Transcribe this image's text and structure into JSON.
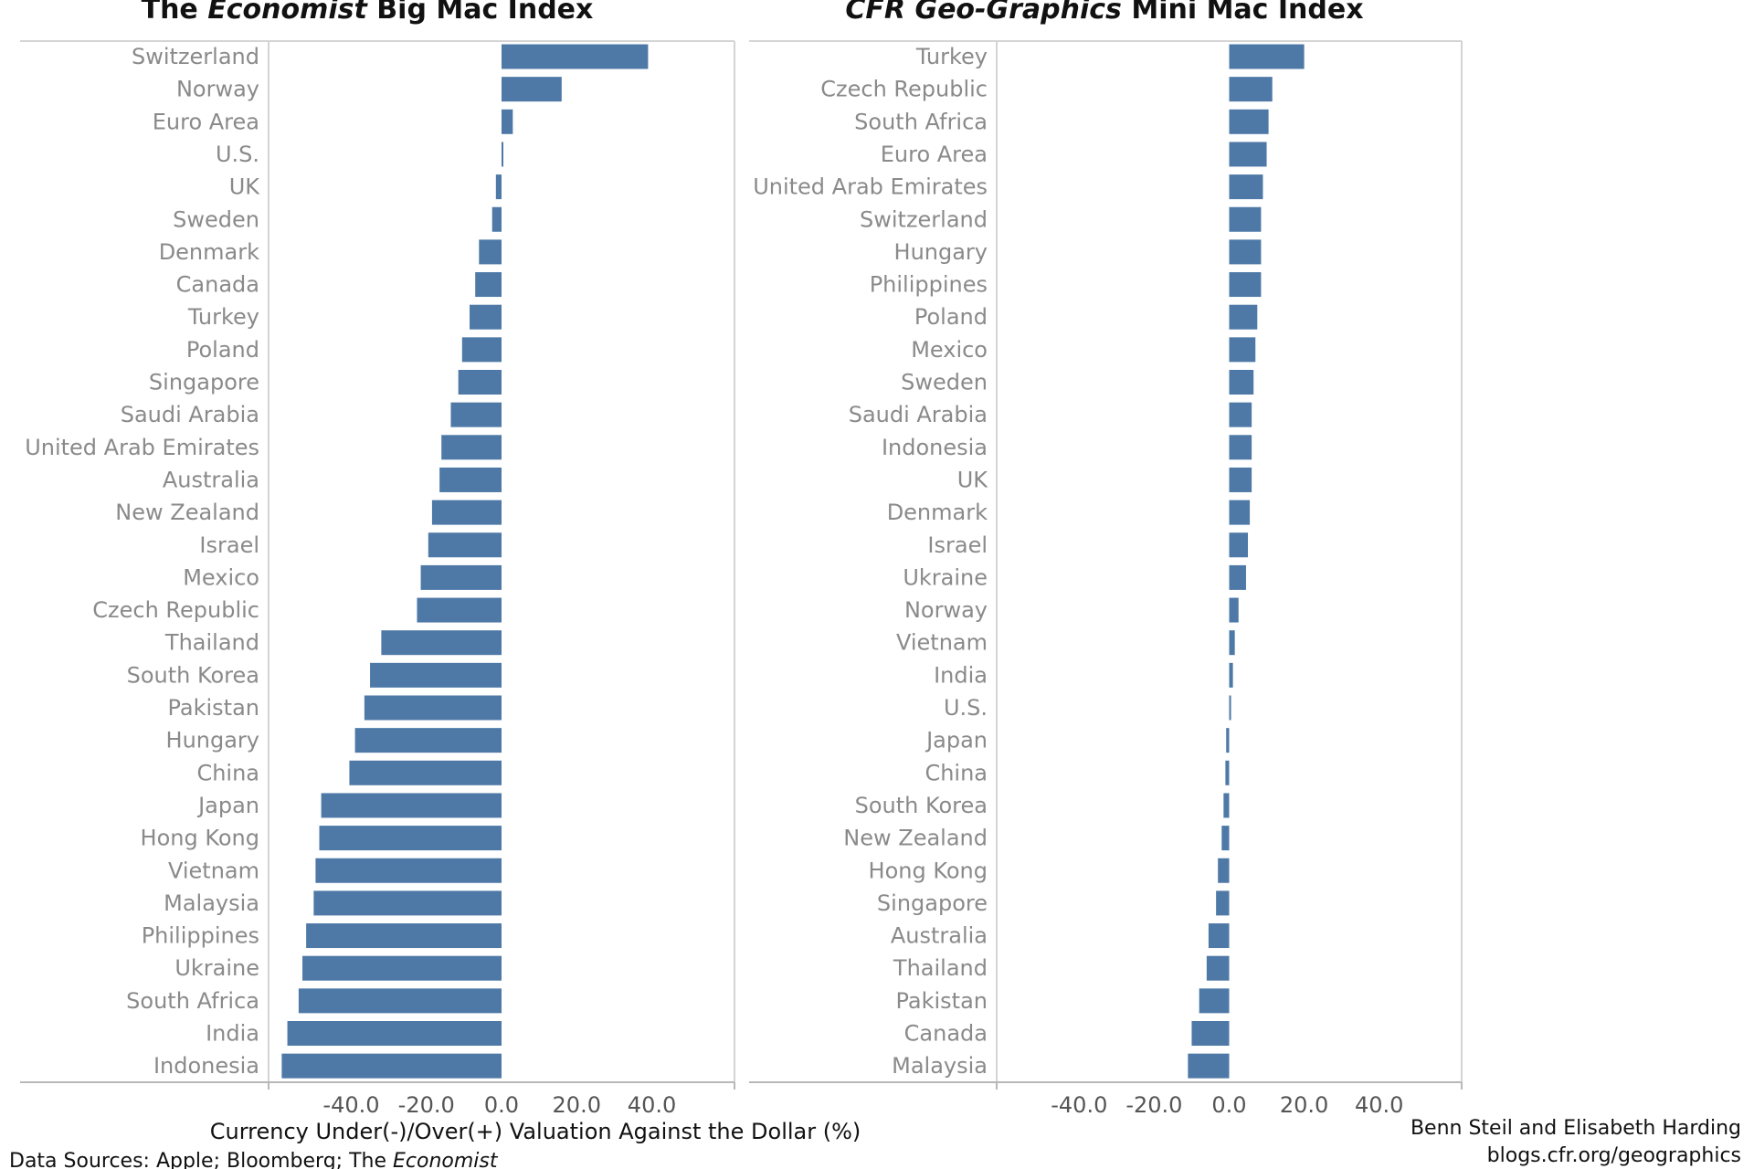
{
  "chart_data": [
    {
      "type": "bar",
      "orientation": "horizontal",
      "title": {
        "prefix": "The ",
        "italic": "Economist",
        "suffix": " Big Mac Index"
      },
      "categories": [
        "Switzerland",
        "Norway",
        "Euro Area",
        "U.S.",
        "UK",
        "Sweden",
        "Denmark",
        "Canada",
        "Turkey",
        "Poland",
        "Singapore",
        "Saudi Arabia",
        "United Arab Emirates",
        "Australia",
        "New Zealand",
        "Israel",
        "Mexico",
        "Czech Republic",
        "Thailand",
        "South Korea",
        "Pakistan",
        "Hungary",
        "China",
        "Japan",
        "Hong Kong",
        "Vietnam",
        "Malaysia",
        "Philippines",
        "Ukraine",
        "South Africa",
        "India",
        "Indonesia"
      ],
      "values": [
        39.0,
        16.0,
        3.0,
        0.0,
        -1.5,
        -2.5,
        -6.0,
        -7.0,
        -8.5,
        -10.5,
        -11.5,
        -13.5,
        -16.0,
        -16.5,
        -18.5,
        -19.5,
        -21.5,
        -22.5,
        -32.0,
        -35.0,
        -36.5,
        -39.0,
        -40.5,
        -48.0,
        -48.5,
        -49.5,
        -50.0,
        -52.0,
        -53.0,
        -54.0,
        -57.0,
        -58.5
      ],
      "xlim": [
        -62,
        62
      ],
      "xticks": [
        "-40.0",
        "-20.0",
        "0.0",
        "20.0",
        "40.0"
      ],
      "xlabel": "Currency Under(-)/Over(+) Valuation Against the Dollar (%)",
      "color": "#4e79a7"
    },
    {
      "type": "bar",
      "orientation": "horizontal",
      "title": {
        "prefix": "",
        "italic": "CFR Geo-Graphics",
        "suffix": " Mini Mac Index"
      },
      "categories": [
        "Turkey",
        "Czech Republic",
        "South Africa",
        "Euro Area",
        "United Arab Emirates",
        "Switzerland",
        "Hungary",
        "Philippines",
        "Poland",
        "Mexico",
        "Sweden",
        "Saudi Arabia",
        "Indonesia",
        "UK",
        "Denmark",
        "Israel",
        "Ukraine",
        "Norway",
        "Vietnam",
        "India",
        "U.S.",
        "Japan",
        "China",
        "South Korea",
        "New Zealand",
        "Hong Kong",
        "Singapore",
        "Australia",
        "Thailand",
        "Pakistan",
        "Canada",
        "Malaysia"
      ],
      "values": [
        20.0,
        11.5,
        10.5,
        10.0,
        9.0,
        8.5,
        8.5,
        8.5,
        7.5,
        7.0,
        6.5,
        6.0,
        6.0,
        6.0,
        5.5,
        5.0,
        4.5,
        2.5,
        1.5,
        1.0,
        0.5,
        -0.8,
        -1.0,
        -1.5,
        -2.0,
        -3.0,
        -3.5,
        -5.5,
        -6.0,
        -8.0,
        -10.0,
        -11.0
      ],
      "xlim": [
        -62,
        62
      ],
      "xticks": [
        "-40.0",
        "-20.0",
        "0.0",
        "20.0",
        "40.0"
      ],
      "xlabel": "",
      "color": "#4e79a7"
    }
  ],
  "footer": {
    "source_prefix": "Data Sources: Apple; Bloomberg; The ",
    "source_italic": "Economist",
    "credit": "Benn Steil and Elisabeth Harding",
    "url": "blogs.cfr.org/geographics"
  }
}
